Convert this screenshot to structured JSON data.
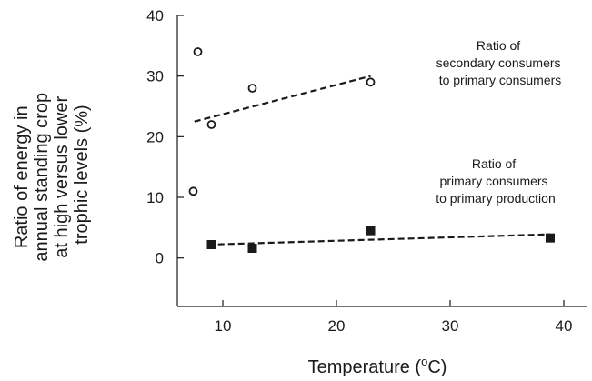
{
  "chart_data": {
    "type": "scatter",
    "xlabel": "Temperature (",
    "xlabel_degree": "o",
    "xlabel_unit": "C)",
    "ylabel_lines": [
      "Ratio of energy in",
      "annual standing crop",
      "at high versus lower",
      "trophic levels (%)"
    ],
    "xlim": [
      6,
      42
    ],
    "ylim": [
      -8,
      40
    ],
    "xticks": [
      10,
      20,
      30,
      40
    ],
    "yticks": [
      0,
      10,
      20,
      30,
      40
    ],
    "grid": false,
    "series": [
      {
        "name": "Ratio of secondary consumers to primary consumers",
        "marker": "open-circle",
        "x": [
          7.4,
          7.8,
          9.0,
          12.6,
          23.0
        ],
        "y": [
          11.0,
          34.0,
          22.0,
          28.0,
          29.0
        ],
        "trend": {
          "x": [
            7.5,
            23.0
          ],
          "y": [
            22.5,
            30.0
          ]
        }
      },
      {
        "name": "Ratio of primary consumers to primary production",
        "marker": "filled-square",
        "x": [
          9.0,
          12.6,
          23.0,
          38.8
        ],
        "y": [
          2.2,
          1.6,
          4.5,
          3.3
        ],
        "trend": {
          "x": [
            8.7,
            38.8
          ],
          "y": [
            2.2,
            3.9
          ]
        }
      }
    ],
    "annotations": [
      {
        "lines": [
          "Ratio of",
          "secondary consumers",
          "to primary consumers"
        ]
      },
      {
        "lines": [
          "Ratio of",
          "primary consumers",
          "to primary production"
        ]
      }
    ]
  }
}
